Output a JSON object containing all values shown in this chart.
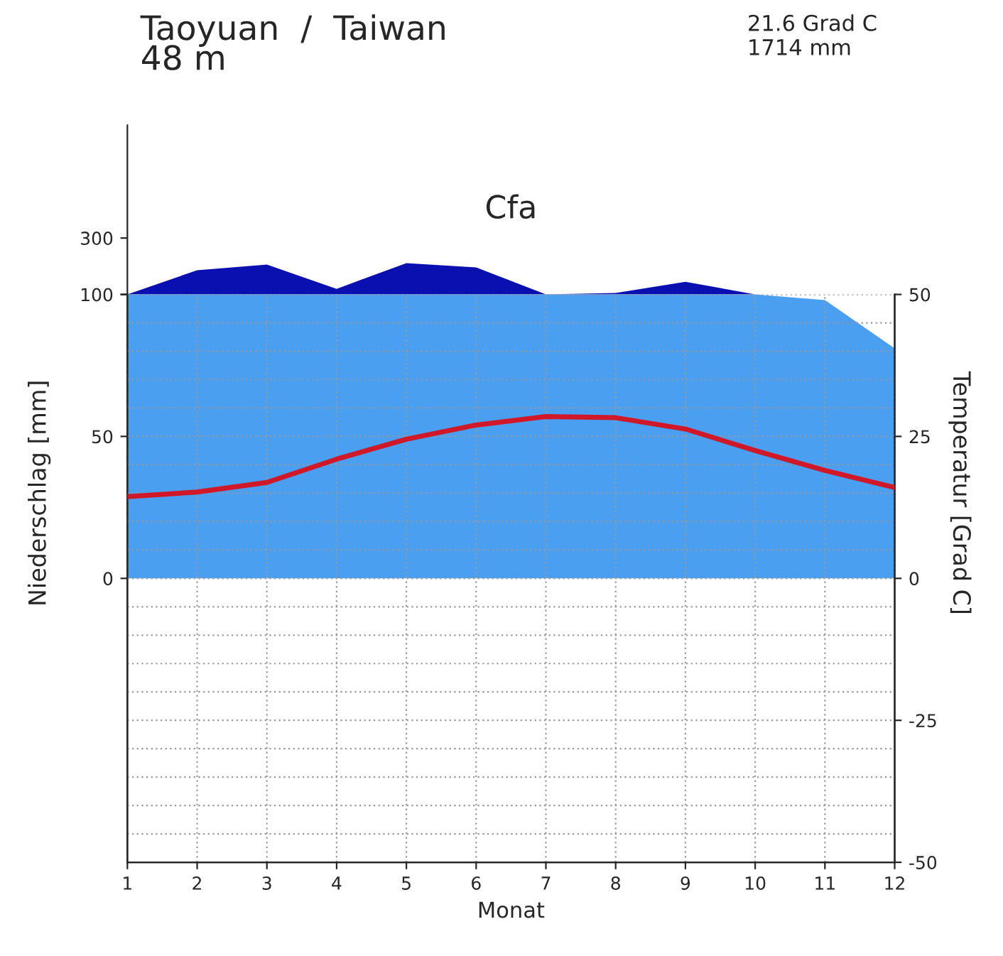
{
  "chart_data": [
    {
      "type": "area",
      "title": "Taoyuan  /  Taiwan\n48 m",
      "annotations": [
        "21.6 Grad C\n1714 mm",
        "Cfa"
      ],
      "x": [
        1,
        2,
        3,
        4,
        5,
        6,
        7,
        8,
        9,
        10
      ],
      "series": [
        {
          "color": "#0a10b0",
          "values": [
            100,
            186,
            206,
            120,
            211,
            196,
            100,
            105,
            145,
            100
          ]
        }
      ],
      "xlim": [
        1,
        12
      ],
      "ylim": [
        100,
        700
      ],
      "yticks": [
        100,
        300
      ],
      "tick_labels": "y"
    },
    {
      "type": "area",
      "xlabel": "Monat",
      "ylabel": "Niederschlag [mm]",
      "y2label": "Temperatur [Grad C]",
      "x": [
        1,
        2,
        3,
        4,
        5,
        6,
        7,
        8,
        9,
        10,
        11,
        12
      ],
      "series": [
        {
          "color": "#4a9ff0",
          "values": [
            100,
            100,
            100,
            100,
            100,
            100,
            100,
            100,
            100,
            100,
            98,
            81
          ]
        },
        {
          "type": "line",
          "axis": "y2",
          "color": "#d01828",
          "values": [
            14.4,
            15.2,
            16.9,
            21,
            24.5,
            27,
            28.5,
            28.3,
            26.3,
            22.5,
            19,
            16
          ]
        }
      ],
      "xlim": [
        1,
        12
      ],
      "xticks": [
        1,
        2,
        3,
        4,
        5,
        6,
        7,
        8,
        9,
        10,
        11,
        12
      ],
      "ylim": [
        -100,
        100
      ],
      "yticks": [
        0,
        50,
        {
          "value": 100,
          "label": null
        }
      ],
      "y2lim": [
        -50,
        50
      ],
      "y2ticks": [
        -50,
        -25,
        0,
        25,
        50
      ],
      "grid": true
    }
  ]
}
